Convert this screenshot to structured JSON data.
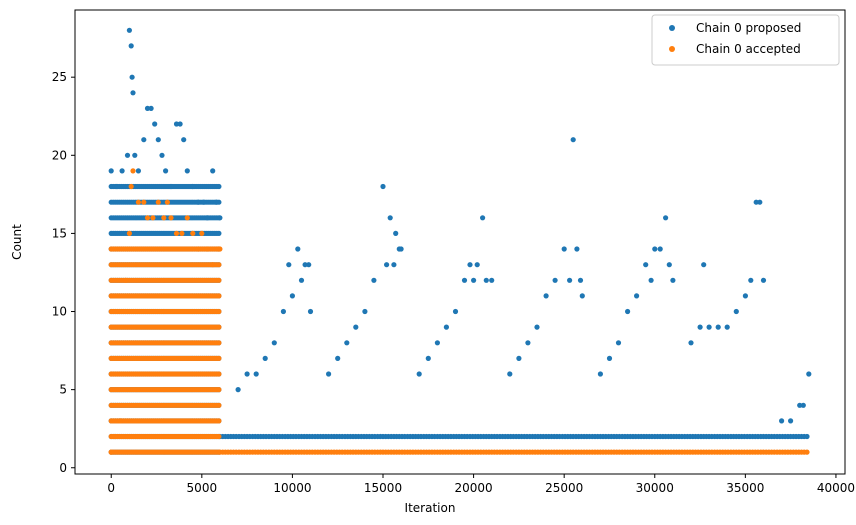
{
  "chart_data": {
    "type": "scatter",
    "xlabel": "Iteration",
    "ylabel": "Count",
    "xlim": [
      -2000,
      40500
    ],
    "ylim": [
      -0.4,
      29.3
    ],
    "xticks": [
      0,
      5000,
      10000,
      15000,
      20000,
      25000,
      30000,
      35000,
      40000
    ],
    "yticks": [
      0,
      5,
      10,
      15,
      20,
      25
    ],
    "legend_position": "top-right",
    "grid": false,
    "series": [
      {
        "name": "Chain 0 proposed",
        "color": "#1f77b4",
        "points": [
          [
            0,
            19
          ],
          [
            300,
            18
          ],
          [
            600,
            19
          ],
          [
            900,
            20
          ],
          [
            1000,
            28
          ],
          [
            1100,
            27
          ],
          [
            1150,
            25
          ],
          [
            1200,
            24
          ],
          [
            1300,
            20
          ],
          [
            1500,
            19
          ],
          [
            1800,
            21
          ],
          [
            2000,
            23
          ],
          [
            2200,
            23
          ],
          [
            2400,
            22
          ],
          [
            2600,
            21
          ],
          [
            2800,
            20
          ],
          [
            3000,
            19
          ],
          [
            3300,
            18
          ],
          [
            3600,
            22
          ],
          [
            3800,
            22
          ],
          [
            4000,
            21
          ],
          [
            4200,
            19
          ],
          [
            4500,
            18
          ],
          [
            4800,
            17
          ],
          [
            5100,
            17
          ],
          [
            5300,
            16
          ],
          [
            5600,
            19
          ],
          [
            5800,
            17
          ],
          [
            6000,
            16
          ],
          [
            7000,
            5
          ],
          [
            7500,
            6
          ],
          [
            8000,
            6
          ],
          [
            8500,
            7
          ],
          [
            9000,
            8
          ],
          [
            9500,
            10
          ],
          [
            9800,
            13
          ],
          [
            10000,
            11
          ],
          [
            10300,
            14
          ],
          [
            10500,
            12
          ],
          [
            10700,
            13
          ],
          [
            10900,
            13
          ],
          [
            11000,
            10
          ],
          [
            12000,
            6
          ],
          [
            12500,
            7
          ],
          [
            13000,
            8
          ],
          [
            13500,
            9
          ],
          [
            14000,
            10
          ],
          [
            14500,
            12
          ],
          [
            15000,
            18
          ],
          [
            15200,
            13
          ],
          [
            15400,
            16
          ],
          [
            15600,
            13
          ],
          [
            15700,
            15
          ],
          [
            15900,
            14
          ],
          [
            16000,
            14
          ],
          [
            17000,
            6
          ],
          [
            17500,
            7
          ],
          [
            18000,
            8
          ],
          [
            18500,
            9
          ],
          [
            19000,
            10
          ],
          [
            19500,
            12
          ],
          [
            19800,
            13
          ],
          [
            20000,
            12
          ],
          [
            20200,
            13
          ],
          [
            20500,
            16
          ],
          [
            20700,
            12
          ],
          [
            21000,
            12
          ],
          [
            22000,
            6
          ],
          [
            22500,
            7
          ],
          [
            23000,
            8
          ],
          [
            23500,
            9
          ],
          [
            24000,
            11
          ],
          [
            24500,
            12
          ],
          [
            25000,
            14
          ],
          [
            25300,
            12
          ],
          [
            25500,
            21
          ],
          [
            25700,
            14
          ],
          [
            25900,
            12
          ],
          [
            26000,
            11
          ],
          [
            27000,
            6
          ],
          [
            27500,
            7
          ],
          [
            28000,
            8
          ],
          [
            28500,
            10
          ],
          [
            29000,
            11
          ],
          [
            29500,
            13
          ],
          [
            29800,
            12
          ],
          [
            30000,
            14
          ],
          [
            30300,
            14
          ],
          [
            30600,
            16
          ],
          [
            30800,
            13
          ],
          [
            31000,
            12
          ],
          [
            32000,
            8
          ],
          [
            32500,
            9
          ],
          [
            32700,
            13
          ],
          [
            33000,
            9
          ],
          [
            33500,
            9
          ],
          [
            34000,
            9
          ],
          [
            34500,
            10
          ],
          [
            35000,
            11
          ],
          [
            35300,
            12
          ],
          [
            35600,
            17
          ],
          [
            35800,
            17
          ],
          [
            36000,
            12
          ],
          [
            37000,
            3
          ],
          [
            37500,
            3
          ],
          [
            38000,
            4
          ],
          [
            38200,
            4
          ],
          [
            38500,
            6
          ]
        ]
      },
      {
        "name": "Chain 0 accepted",
        "color": "#ff7f0e",
        "points": [
          [
            0,
            1
          ],
          [
            200,
            2
          ],
          [
            500,
            3
          ],
          [
            800,
            12
          ],
          [
            1000,
            15
          ],
          [
            1100,
            18
          ],
          [
            1200,
            19
          ],
          [
            1500,
            17
          ],
          [
            1800,
            17
          ],
          [
            2000,
            16
          ],
          [
            2300,
            16
          ],
          [
            2600,
            17
          ],
          [
            2900,
            16
          ],
          [
            3100,
            17
          ],
          [
            3300,
            16
          ],
          [
            3600,
            15
          ],
          [
            3900,
            15
          ],
          [
            4200,
            16
          ],
          [
            4500,
            15
          ],
          [
            4800,
            14
          ],
          [
            5000,
            15
          ],
          [
            5300,
            14
          ],
          [
            5600,
            13
          ],
          [
            5900,
            14
          ],
          [
            6000,
            14
          ]
        ]
      }
    ],
    "bands": [
      {
        "series": 0,
        "x_start": 0,
        "x_end": 6000,
        "y_values": [
          1,
          2,
          3,
          4,
          5,
          6,
          7,
          8,
          9,
          10,
          11,
          12,
          13,
          14,
          15,
          16,
          17,
          18
        ],
        "note": "dense"
      },
      {
        "series": 1,
        "x_start": 0,
        "x_end": 6000,
        "y_values": [
          1,
          2,
          3,
          4,
          5,
          6,
          7,
          8,
          9,
          10,
          11,
          12,
          13,
          14
        ],
        "note": "dense"
      },
      {
        "series": 0,
        "x_start": 6000,
        "x_end": 38500,
        "y_values": [
          2
        ],
        "note": "dense"
      },
      {
        "series": 1,
        "x_start": 6000,
        "x_end": 38500,
        "y_values": [
          1
        ],
        "note": "dense"
      }
    ]
  },
  "legend": {
    "items": [
      {
        "label": "Chain 0 proposed",
        "color": "#1f77b4"
      },
      {
        "label": "Chain 0 accepted",
        "color": "#ff7f0e"
      }
    ]
  }
}
